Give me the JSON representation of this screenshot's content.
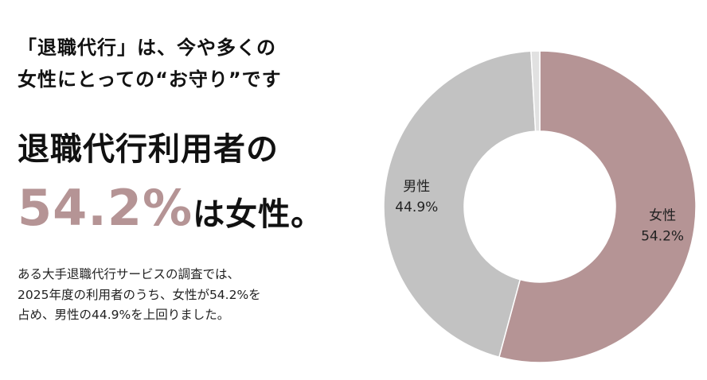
{
  "headline": {
    "line1": "「退職代行」は、今や多くの",
    "line2": "女性にとっての“お守り”です"
  },
  "big_statement": {
    "line1": "退職代行利用者の",
    "percent": "54.2%",
    "suffix": "は女性。"
  },
  "body": {
    "line1": "ある大手退職代行サービスの調査では、",
    "line2": "2025年度の利用者のうち、女性が54.2%を",
    "line3": "占め、男性の44.9%を上回りました。"
  },
  "colors": {
    "accent": "#b59495",
    "female": "#b59495",
    "male": "#c2c2c2",
    "other": "#e1e1e1",
    "divider": "#ffffff"
  },
  "chart_data": {
    "type": "pie",
    "style": "donut",
    "start": "top, clockwise",
    "slices": [
      {
        "name": "女性",
        "value": 54.2,
        "label": "54.2%",
        "color": "#b59495"
      },
      {
        "name": "男性",
        "value": 44.9,
        "label": "44.9%",
        "color": "#c2c2c2"
      },
      {
        "name": "",
        "value": 0.9,
        "label": "",
        "color": "#e1e1e1"
      }
    ]
  }
}
